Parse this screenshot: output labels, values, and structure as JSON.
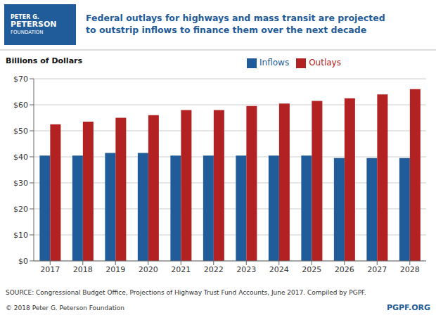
{
  "chart_data": {
    "type": "bar",
    "title": "Federal outlays for highways and mass transit are projected",
    "subtitle": "to outstrip inflows to finance them over the next decade",
    "y_label": "Billions of Dollars",
    "categories": [
      "2017",
      "2018",
      "2019",
      "2020",
      "2021",
      "2022",
      "2023",
      "2024",
      "2025",
      "2026",
      "2027",
      "2028"
    ],
    "series": [
      {
        "name": "Inflows",
        "color": "#1F5C99",
        "values": [
          40.5,
          40.5,
          41.5,
          41.5,
          40.5,
          40.5,
          40.5,
          40.5,
          40.5,
          39.5,
          39.5,
          39.5
        ]
      },
      {
        "name": "Outlays",
        "color": "#B22222",
        "values": [
          52.5,
          53.5,
          55.0,
          56.0,
          58.0,
          58.0,
          59.5,
          60.5,
          61.5,
          62.5,
          64.0,
          66.0
        ]
      }
    ],
    "ylim": [
      0,
      70
    ],
    "yticks": [
      {
        "value": 0,
        "label": "$0"
      },
      {
        "value": 10,
        "label": "$10"
      },
      {
        "value": 20,
        "label": "$20"
      },
      {
        "value": 30,
        "label": "$30"
      },
      {
        "value": 40,
        "label": "$40"
      },
      {
        "value": 50,
        "label": "$50"
      },
      {
        "value": 60,
        "label": "$60"
      },
      {
        "value": 70,
        "label": "$70"
      }
    ],
    "grid": true,
    "legend": "top",
    "annotations": [
      "PETER G.",
      "PETERSON",
      "FOUNDATION",
      "SOURCE: Congressional Budget Office, Projections of Highway Trust Fund Accounts, June 2017. Compiled by PGPF.",
      "© 2018 Peter G. Peterson Foundation",
      "PGPF.ORG"
    ]
  }
}
